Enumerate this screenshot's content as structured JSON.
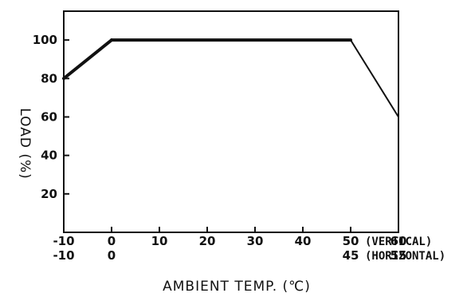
{
  "chart_data": {
    "type": "line",
    "xlabel": "AMBIENT TEMP. (℃)",
    "ylabel": "LOAD (%)",
    "xlim": [
      -10,
      60
    ],
    "ylim": [
      0,
      115
    ],
    "grid": false,
    "x_ticks": {
      "vertical": [
        "-10",
        "0",
        "10",
        "20",
        "30",
        "40",
        "50",
        "60"
      ],
      "horizontal": [
        "-10",
        "0",
        "45",
        "55"
      ]
    },
    "x_tick_values": {
      "vertical": [
        -10,
        0,
        10,
        20,
        30,
        40,
        50,
        60
      ],
      "horizontal": [
        -10,
        0,
        50,
        60
      ]
    },
    "y_ticks": [
      "20",
      "40",
      "60",
      "80",
      "100"
    ],
    "y_tick_values": [
      20,
      40,
      60,
      80,
      100
    ],
    "mounting_labels": {
      "vertical": "(VERTICAL)",
      "horizontal": "(HORIZONTAL)"
    },
    "series": [
      {
        "x": [
          -10,
          0,
          50,
          60,
          60
        ],
        "y": [
          80,
          100,
          100,
          60,
          0
        ]
      }
    ],
    "line_color": "#111111"
  }
}
